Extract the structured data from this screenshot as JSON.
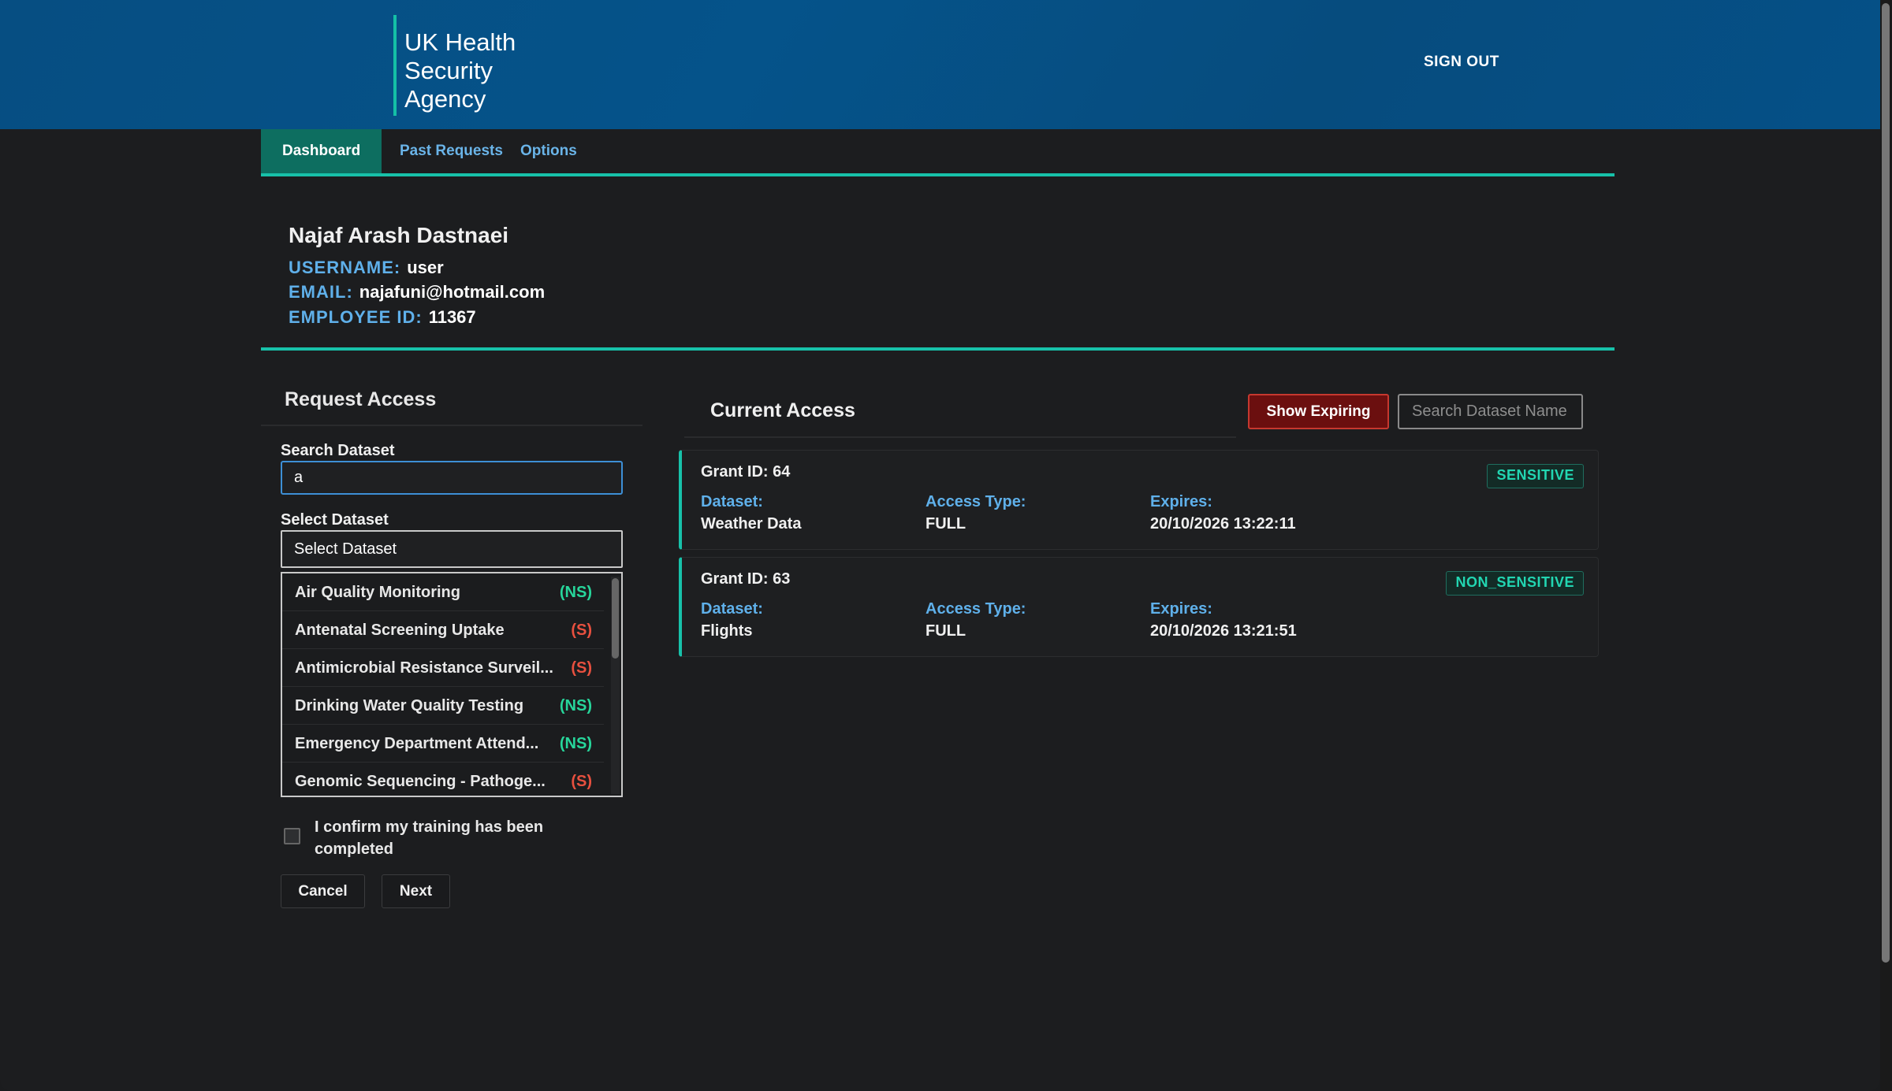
{
  "header": {
    "logo_lines": [
      "UK Health",
      "Security",
      "Agency"
    ],
    "sign_out": "SIGN OUT"
  },
  "nav": {
    "tabs": [
      {
        "label": "Dashboard",
        "active": true
      },
      {
        "label": "Past Requests",
        "active": false
      },
      {
        "label": "Options",
        "active": false
      }
    ]
  },
  "profile": {
    "name": "Najaf Arash Dastnaei",
    "username_label": "USERNAME:",
    "username": "user",
    "email_label": "EMAIL:",
    "email": "najafuni@hotmail.com",
    "employee_id_label": "EMPLOYEE ID:",
    "employee_id": "11367"
  },
  "request_access": {
    "title": "Request Access",
    "search_label": "Search Dataset",
    "search_value": "a",
    "select_label": "Select Dataset",
    "select_value": "Select Dataset",
    "options": [
      {
        "name": "Air Quality Monitoring",
        "tag": "(NS)",
        "sensitive": false
      },
      {
        "name": "Antenatal Screening Uptake",
        "tag": "(S)",
        "sensitive": true
      },
      {
        "name": "Antimicrobial Resistance Surveil...",
        "tag": "(S)",
        "sensitive": true
      },
      {
        "name": "Drinking Water Quality Testing",
        "tag": "(NS)",
        "sensitive": false
      },
      {
        "name": "Emergency Department Attend...",
        "tag": "(NS)",
        "sensitive": false
      },
      {
        "name": "Genomic Sequencing - Pathoge...",
        "tag": "(S)",
        "sensitive": true
      }
    ],
    "confirm_text": "I confirm my training has been completed",
    "confirm_checked": false,
    "cancel_label": "Cancel",
    "next_label": "Next"
  },
  "current_access": {
    "title": "Current Access",
    "show_expiring_label": "Show Expiring",
    "search_placeholder": "Search Dataset Name",
    "dataset_label": "Dataset:",
    "access_type_label": "Access Type:",
    "expires_label": "Expires:",
    "grants": [
      {
        "grant_id": "Grant ID: 64",
        "badge": "SENSITIVE",
        "dataset": "Weather Data",
        "access_type": "FULL",
        "expires": "20/10/2026 13:22:11"
      },
      {
        "grant_id": "Grant ID: 63",
        "badge": "NON_SENSITIVE",
        "dataset": "Flights",
        "access_type": "FULL",
        "expires": "20/10/2026 13:21:51"
      }
    ]
  },
  "colors": {
    "header_blue": "#05538a",
    "accent_teal": "#17c1a9",
    "label_blue": "#5fb0ea",
    "ns_green": "#27d69b",
    "s_red": "#e8503f",
    "expiring_red": "#6b0f0f"
  }
}
